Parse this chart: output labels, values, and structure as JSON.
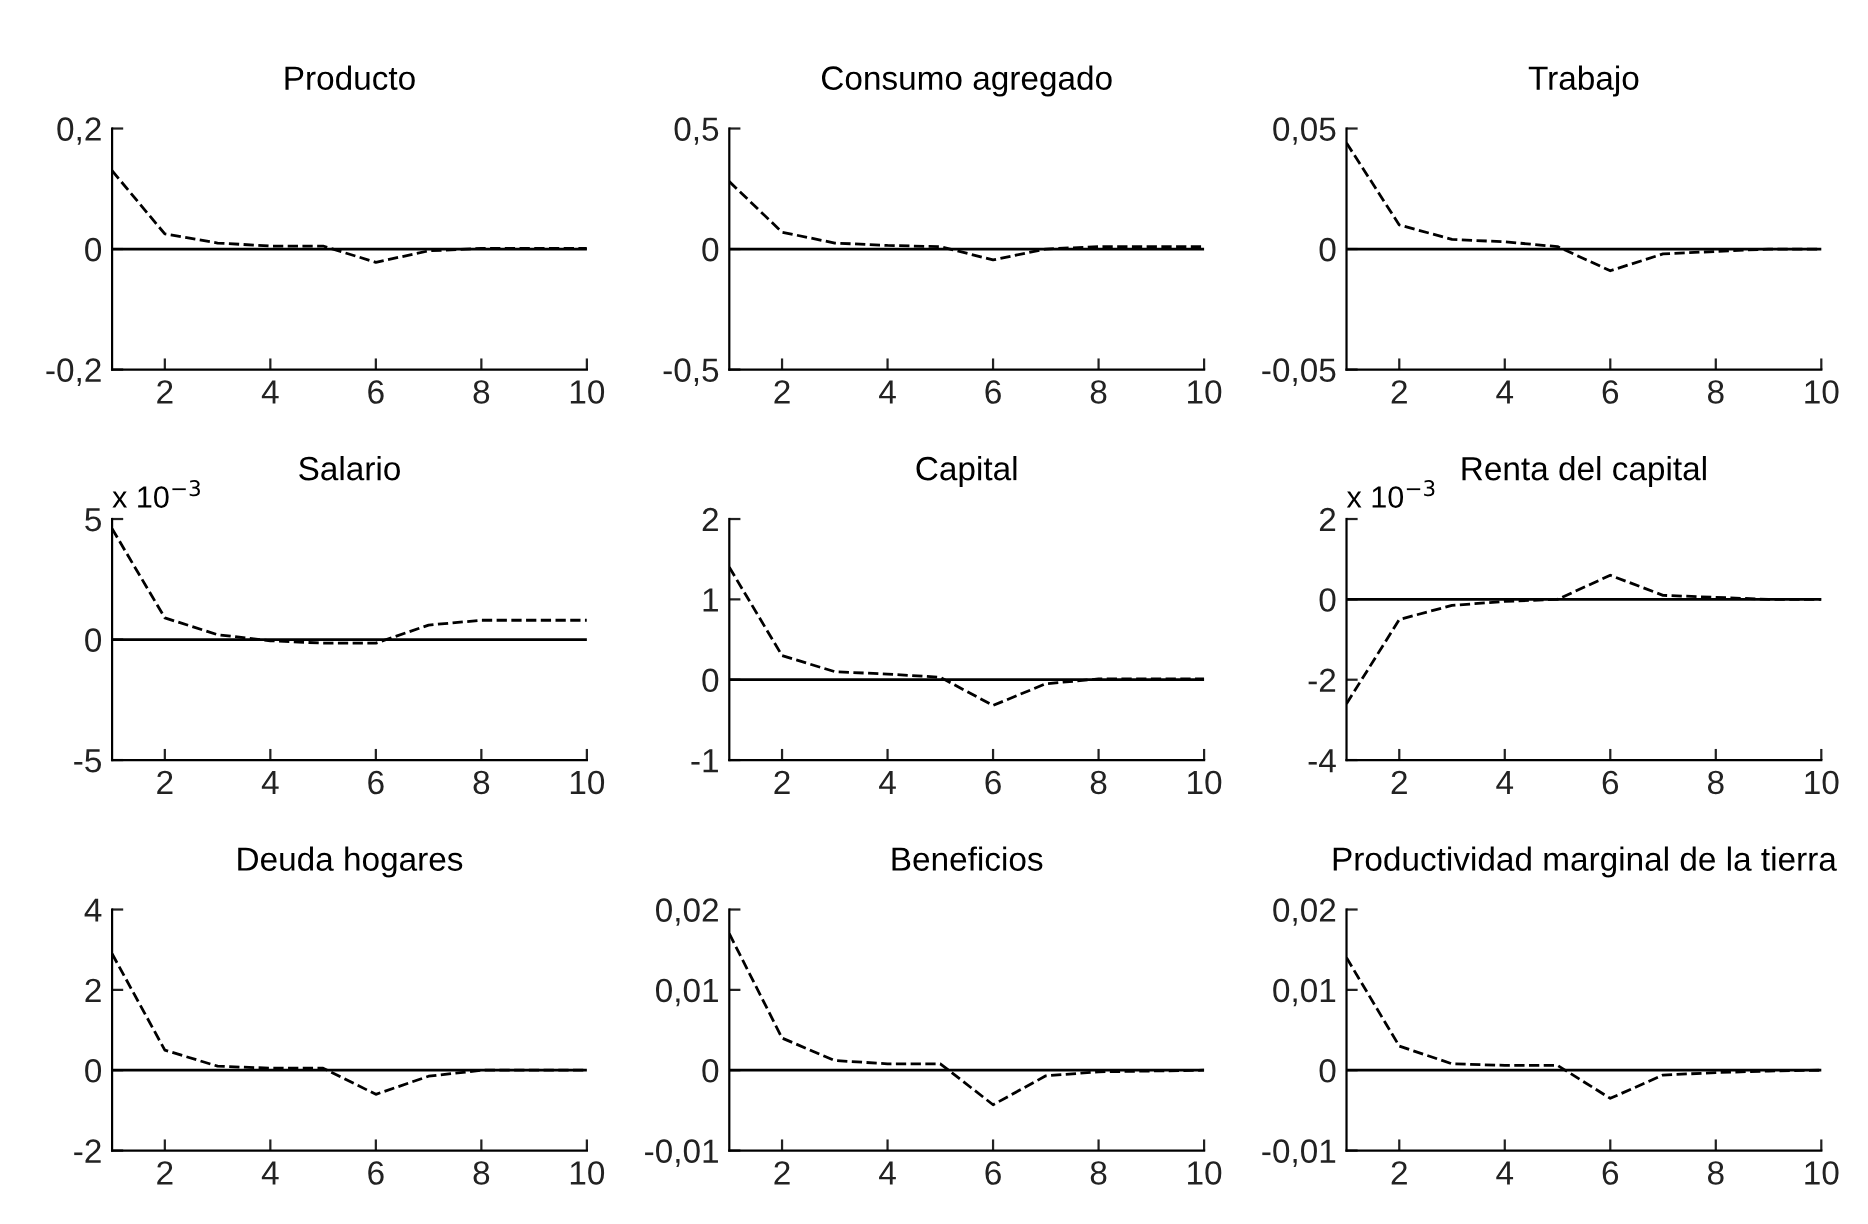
{
  "chart_data": [
    {
      "type": "line",
      "title": "Producto",
      "x": [
        1,
        2,
        3,
        4,
        5,
        6,
        7,
        8,
        9,
        10
      ],
      "series": [
        {
          "color": "#000000",
          "values": [
            0.13,
            0.025,
            0.01,
            0.005,
            0.005,
            -0.022,
            -0.003,
            0.001,
            0.001,
            0.001
          ]
        }
      ],
      "line_style": "dashed",
      "xlim": [
        1,
        10
      ],
      "xticks": [
        2,
        4,
        6,
        8,
        10
      ],
      "ylim": [
        -0.2,
        0.2
      ],
      "yticks": [
        {
          "value": -0.2,
          "label": "-0,2"
        },
        0,
        {
          "value": 0.2,
          "label": "0,2"
        }
      ],
      "ref_lines": [
        {
          "axis": "y",
          "value": 0,
          "color": "#000000",
          "line_style": "solid"
        }
      ]
    },
    {
      "type": "line",
      "title": "Consumo agregado",
      "x": [
        1,
        2,
        3,
        4,
        5,
        6,
        7,
        8,
        9,
        10
      ],
      "series": [
        {
          "color": "#000000",
          "values": [
            0.28,
            0.07,
            0.025,
            0.015,
            0.01,
            -0.045,
            0.0,
            0.01,
            0.01,
            0.01
          ]
        }
      ],
      "line_style": "dashed",
      "xlim": [
        1,
        10
      ],
      "xticks": [
        2,
        4,
        6,
        8,
        10
      ],
      "ylim": [
        -0.5,
        0.5
      ],
      "yticks": [
        {
          "value": -0.5,
          "label": "-0,5"
        },
        0,
        {
          "value": 0.5,
          "label": "0,5"
        }
      ],
      "ref_lines": [
        {
          "axis": "y",
          "value": 0,
          "color": "#000000",
          "line_style": "solid"
        }
      ]
    },
    {
      "type": "line",
      "title": "Trabajo",
      "x": [
        1,
        2,
        3,
        4,
        5,
        6,
        7,
        8,
        9,
        10
      ],
      "series": [
        {
          "color": "#000000",
          "values": [
            0.044,
            0.01,
            0.004,
            0.003,
            0.001,
            -0.009,
            -0.002,
            -0.001,
            0.0,
            0.0
          ]
        }
      ],
      "line_style": "dashed",
      "xlim": [
        1,
        10
      ],
      "xticks": [
        2,
        4,
        6,
        8,
        10
      ],
      "ylim": [
        -0.05,
        0.05
      ],
      "yticks": [
        {
          "value": -0.05,
          "label": "-0,05"
        },
        0,
        {
          "value": 0.05,
          "label": "0,05"
        }
      ],
      "ref_lines": [
        {
          "axis": "y",
          "value": 0,
          "color": "#000000",
          "line_style": "solid"
        }
      ]
    },
    {
      "type": "line",
      "title": "Salario",
      "annotations": [
        "x 10$^{−3}$"
      ],
      "x": [
        1,
        2,
        3,
        4,
        5,
        6,
        7,
        8,
        9,
        10
      ],
      "series": [
        {
          "color": "#000000",
          "values": [
            4.6,
            0.9,
            0.2,
            -0.05,
            -0.15,
            -0.15,
            0.6,
            0.8,
            0.8,
            0.8
          ]
        }
      ],
      "line_style": "dashed",
      "xlim": [
        1,
        10
      ],
      "xticks": [
        2,
        4,
        6,
        8,
        10
      ],
      "ylim": [
        -5,
        5
      ],
      "yticks": [
        -5,
        0,
        5
      ],
      "ref_lines": [
        {
          "axis": "y",
          "value": 0,
          "color": "#000000",
          "line_style": "solid"
        }
      ]
    },
    {
      "type": "line",
      "title": "Capital",
      "x": [
        1,
        2,
        3,
        4,
        5,
        6,
        7,
        8,
        9,
        10
      ],
      "series": [
        {
          "color": "#000000",
          "values": [
            1.4,
            0.3,
            0.1,
            0.07,
            0.03,
            -0.32,
            -0.05,
            0.01,
            0.01,
            0.01
          ]
        }
      ],
      "line_style": "dashed",
      "xlim": [
        1,
        10
      ],
      "xticks": [
        2,
        4,
        6,
        8,
        10
      ],
      "ylim": [
        -1,
        2
      ],
      "yticks": [
        -1,
        0,
        1,
        2
      ],
      "ref_lines": [
        {
          "axis": "y",
          "value": 0,
          "color": "#000000",
          "line_style": "solid"
        }
      ]
    },
    {
      "type": "line",
      "title": "Renta del capital",
      "annotations": [
        "x 10$^{−3}$"
      ],
      "x": [
        1,
        2,
        3,
        4,
        5,
        6,
        7,
        8,
        9,
        10
      ],
      "series": [
        {
          "color": "#000000",
          "values": [
            -2.6,
            -0.5,
            -0.15,
            -0.05,
            0.0,
            0.6,
            0.1,
            0.05,
            0.0,
            0.0
          ]
        }
      ],
      "line_style": "dashed",
      "xlim": [
        1,
        10
      ],
      "xticks": [
        2,
        4,
        6,
        8,
        10
      ],
      "ylim": [
        -4,
        2
      ],
      "yticks": [
        -4,
        -2,
        0,
        2
      ],
      "ref_lines": [
        {
          "axis": "y",
          "value": 0,
          "color": "#000000",
          "line_style": "solid"
        }
      ]
    },
    {
      "type": "line",
      "title": "Deuda hogares",
      "x": [
        1,
        2,
        3,
        4,
        5,
        6,
        7,
        8,
        9,
        10
      ],
      "series": [
        {
          "color": "#000000",
          "values": [
            2.9,
            0.5,
            0.1,
            0.05,
            0.05,
            -0.6,
            -0.15,
            0.0,
            0.0,
            0.0
          ]
        }
      ],
      "line_style": "dashed",
      "xlim": [
        1,
        10
      ],
      "xticks": [
        2,
        4,
        6,
        8,
        10
      ],
      "ylim": [
        -2,
        4
      ],
      "yticks": [
        -2,
        0,
        2,
        4
      ],
      "ref_lines": [
        {
          "axis": "y",
          "value": 0,
          "color": "#000000",
          "line_style": "solid"
        }
      ]
    },
    {
      "type": "line",
      "title": "Beneficios",
      "x": [
        1,
        2,
        3,
        4,
        5,
        6,
        7,
        8,
        9,
        10
      ],
      "series": [
        {
          "color": "#000000",
          "values": [
            0.017,
            0.004,
            0.0012,
            0.0008,
            0.0008,
            -0.0043,
            -0.0007,
            -0.0002,
            -0.0001,
            0.0
          ]
        }
      ],
      "line_style": "dashed",
      "xlim": [
        1,
        10
      ],
      "xticks": [
        2,
        4,
        6,
        8,
        10
      ],
      "ylim": [
        -0.01,
        0.02
      ],
      "yticks": [
        {
          "value": -0.01,
          "label": "-0,01"
        },
        0,
        {
          "value": 0.01,
          "label": "0,01"
        },
        {
          "value": 0.02,
          "label": "0,02"
        }
      ],
      "ref_lines": [
        {
          "axis": "y",
          "value": 0,
          "color": "#000000",
          "line_style": "solid"
        }
      ]
    },
    {
      "type": "line",
      "title": "Productividad marginal de la tierra",
      "x": [
        1,
        2,
        3,
        4,
        5,
        6,
        7,
        8,
        9,
        10
      ],
      "series": [
        {
          "color": "#000000",
          "values": [
            0.014,
            0.003,
            0.0008,
            0.0006,
            0.0006,
            -0.0035,
            -0.0006,
            -0.0003,
            -0.0001,
            0.0
          ]
        }
      ],
      "line_style": "dashed",
      "xlim": [
        1,
        10
      ],
      "xticks": [
        2,
        4,
        6,
        8,
        10
      ],
      "ylim": [
        -0.01,
        0.02
      ],
      "yticks": [
        {
          "value": -0.01,
          "label": "-0,01"
        },
        0,
        {
          "value": 0.01,
          "label": "0,01"
        },
        {
          "value": 0.02,
          "label": "0,02"
        }
      ],
      "ref_lines": [
        {
          "axis": "y",
          "value": 0,
          "color": "#000000",
          "line_style": "solid"
        }
      ]
    }
  ]
}
